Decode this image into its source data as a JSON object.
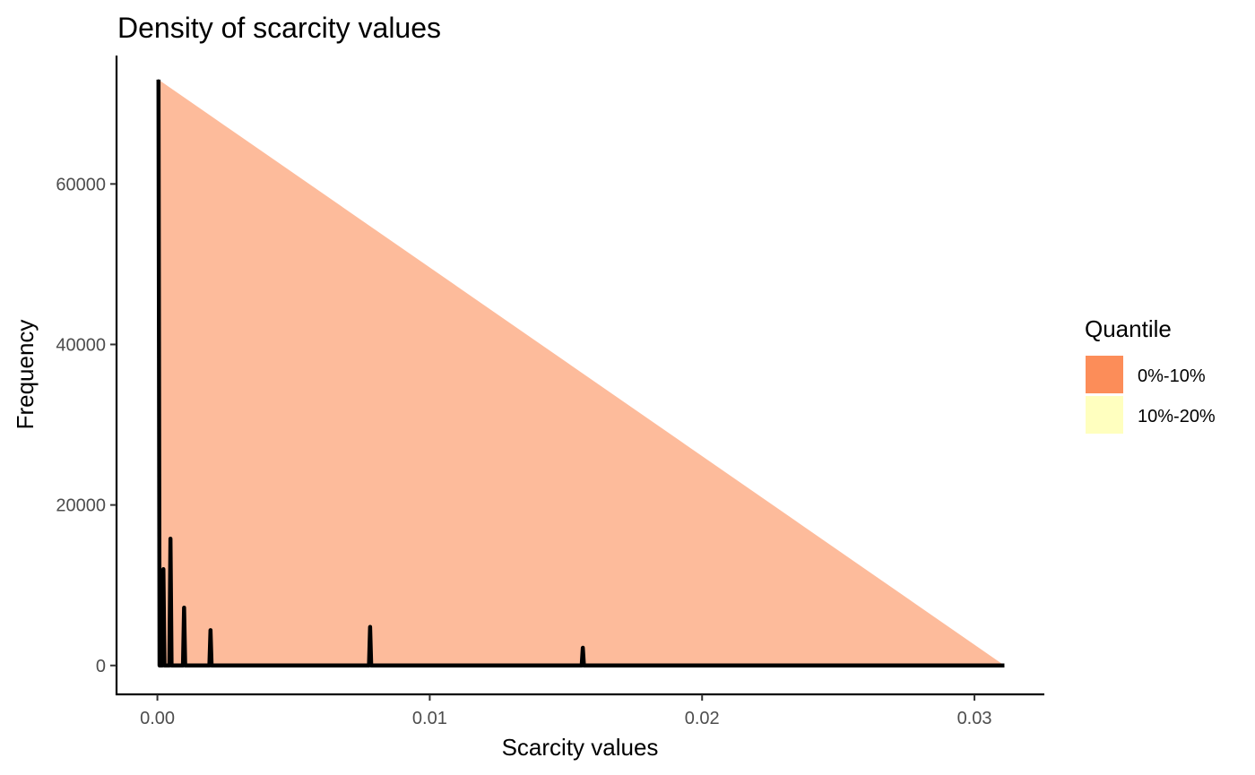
{
  "chart_data": {
    "type": "area",
    "title": "Density of scarcity values",
    "xlabel": "Scarcity values",
    "ylabel": "Frequency",
    "xlim": [
      -0.0015,
      0.0325
    ],
    "ylim": [
      -3600,
      76000
    ],
    "x_ticks": [
      0.0,
      0.01,
      0.02,
      0.03
    ],
    "x_tick_labels": [
      "0.00",
      "0.01",
      "0.02",
      "0.03"
    ],
    "y_ticks": [
      0,
      20000,
      40000,
      60000
    ],
    "y_tick_labels": [
      "0",
      "20000",
      "40000",
      "60000"
    ],
    "grid": false,
    "legend": {
      "title": "Quantile",
      "position": "right",
      "entries": [
        {
          "label": "0%-10%",
          "color": "#fc8d59"
        },
        {
          "label": "10%-20%",
          "color": "#ffffbf"
        }
      ]
    },
    "line_color": "#000000",
    "x_max": 0.0311,
    "peaks": [
      {
        "x": 4e-05,
        "y": 73000
      },
      {
        "x": 0.00022,
        "y": 12000
      },
      {
        "x": 0.00048,
        "y": 15800
      },
      {
        "x": 0.00098,
        "y": 7200
      },
      {
        "x": 0.00195,
        "y": 4400
      },
      {
        "x": 0.00781,
        "y": 4800
      },
      {
        "x": 0.01562,
        "y": 2200
      }
    ]
  }
}
